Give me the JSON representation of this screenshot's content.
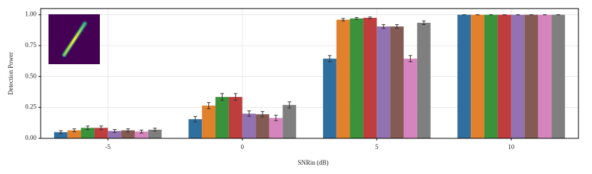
{
  "chart_data": {
    "type": "bar",
    "xlabel": "SNRin (dB)",
    "ylabel": "Detection Power",
    "categories": [
      "-5",
      "0",
      "5",
      "10"
    ],
    "series": [
      {
        "color": "#2f6f9f",
        "values": [
          0.05,
          0.155,
          0.645,
          1.0
        ],
        "errors": [
          0.012,
          0.022,
          0.025,
          0.0
        ]
      },
      {
        "color": "#e1812c",
        "values": [
          0.065,
          0.265,
          0.96,
          1.0
        ],
        "errors": [
          0.012,
          0.025,
          0.01,
          0.0
        ]
      },
      {
        "color": "#3a923a",
        "values": [
          0.085,
          0.335,
          0.97,
          1.0
        ],
        "errors": [
          0.015,
          0.027,
          0.008,
          0.0
        ]
      },
      {
        "color": "#c03d3e",
        "values": [
          0.085,
          0.335,
          0.975,
          1.0
        ],
        "errors": [
          0.015,
          0.027,
          0.007,
          0.0
        ]
      },
      {
        "color": "#9372b2",
        "values": [
          0.06,
          0.2,
          0.905,
          1.0
        ],
        "errors": [
          0.012,
          0.022,
          0.015,
          0.0
        ]
      },
      {
        "color": "#845b53",
        "values": [
          0.065,
          0.195,
          0.905,
          1.0
        ],
        "errors": [
          0.012,
          0.022,
          0.015,
          0.0
        ]
      },
      {
        "color": "#d684bd",
        "values": [
          0.055,
          0.165,
          0.645,
          1.0
        ],
        "errors": [
          0.012,
          0.022,
          0.025,
          0.0
        ]
      },
      {
        "color": "#7f7f7f",
        "values": [
          0.07,
          0.27,
          0.935,
          1.0
        ],
        "errors": [
          0.012,
          0.025,
          0.015,
          0.0
        ]
      }
    ],
    "ylim": [
      0,
      1.05
    ],
    "yticks": [
      {
        "value": 0,
        "label": "0.00"
      },
      {
        "value": 0.25,
        "label": "0.25"
      },
      {
        "value": 0.5,
        "label": "0.50"
      },
      {
        "value": 0.75,
        "label": "0.75"
      },
      {
        "value": 1,
        "label": "1.00"
      }
    ],
    "grid": true
  }
}
